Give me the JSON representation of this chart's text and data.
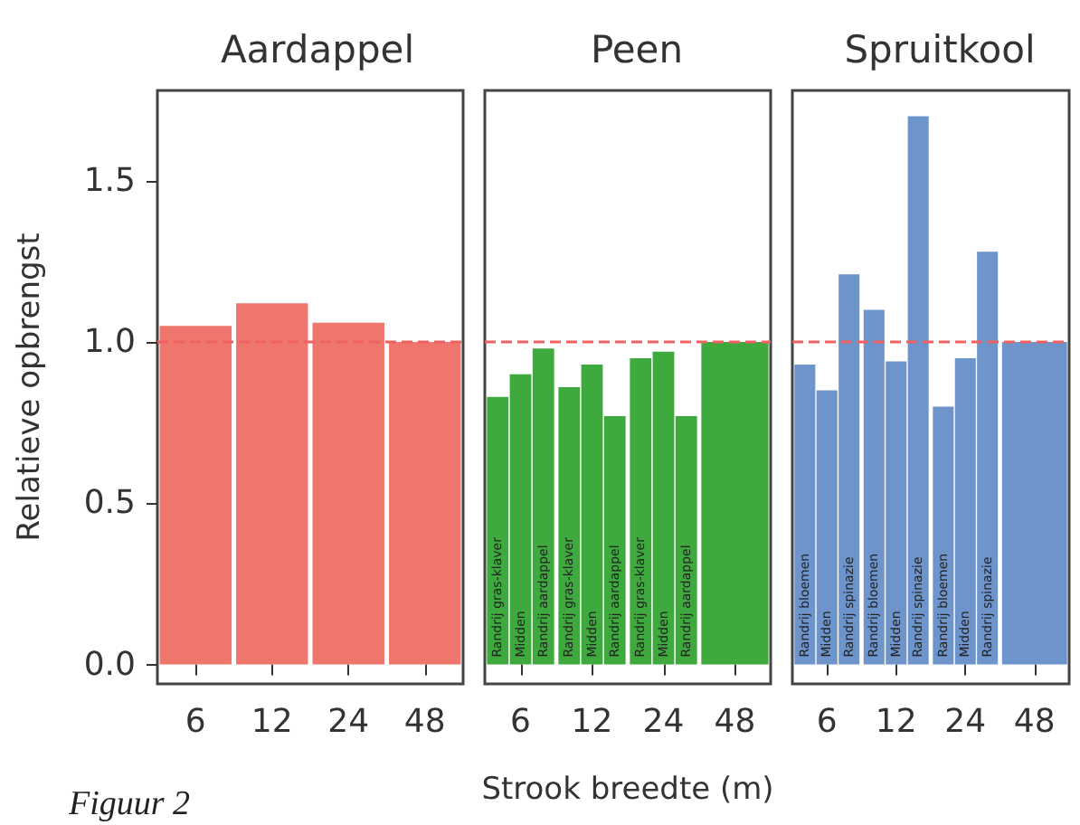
{
  "chart_data": [
    {
      "type": "bar",
      "title": "Aardappel",
      "ylabel": "Relatieve opbrengst",
      "categories": [
        "6",
        "12",
        "24",
        "48"
      ],
      "color": "#ef766c",
      "values": [
        1.05,
        1.12,
        1.06,
        1.0
      ],
      "ylim": [
        -0.06,
        1.78
      ],
      "yticks": [
        {
          "value": 0,
          "label": "0.0"
        },
        {
          "value": 0.5,
          "label": "0.5"
        },
        {
          "value": 1,
          "label": "1.0"
        },
        {
          "value": 1.5,
          "label": "1.5"
        }
      ],
      "grid": false,
      "ref_lines": [
        {
          "axis": "y",
          "value": 1.0,
          "color": "#f06060",
          "line_style": "dashed"
        }
      ],
      "annotations": [
        "Figuur 2"
      ]
    },
    {
      "type": "bar",
      "title": "Peen",
      "xlabel": "Strook breedte (m)",
      "categories": [
        "6",
        "12",
        "24",
        "48"
      ],
      "series": [
        {
          "name": "Randrij gras-klaver",
          "color": "#3eaa3e",
          "values": [
            0.83,
            0.86,
            0.95,
            null
          ]
        },
        {
          "name": "Midden",
          "color": "#3eaa3e",
          "values": [
            0.9,
            0.93,
            0.97,
            null
          ]
        },
        {
          "name": "Randrij aardappel",
          "color": "#3eaa3e",
          "values": [
            0.98,
            0.77,
            0.77,
            null
          ]
        },
        {
          "color": "#3eaa3e",
          "values": [
            null,
            null,
            null,
            1.0
          ]
        }
      ],
      "ylim": [
        -0.06,
        1.78
      ],
      "tick_labels": "x",
      "grid": false,
      "ref_lines": [
        {
          "axis": "y",
          "value": 1.0,
          "color": "#f06060",
          "line_style": "dashed"
        }
      ]
    },
    {
      "type": "bar",
      "title": "Spruitkool",
      "categories": [
        "6",
        "12",
        "24",
        "48"
      ],
      "series": [
        {
          "name": "Randrij bloemen",
          "color": "#6e94cc",
          "values": [
            0.93,
            1.1,
            0.8,
            null
          ]
        },
        {
          "name": "Midden",
          "color": "#6e94cc",
          "values": [
            0.85,
            0.94,
            0.95,
            null
          ]
        },
        {
          "name": "Randrij spinazie",
          "color": "#6e94cc",
          "values": [
            1.21,
            1.7,
            1.28,
            null
          ]
        },
        {
          "color": "#6e94cc",
          "values": [
            null,
            null,
            null,
            1.0
          ]
        }
      ],
      "ylim": [
        -0.06,
        1.78
      ],
      "tick_labels": "x",
      "grid": false,
      "ref_lines": [
        {
          "axis": "y",
          "value": 1.0,
          "color": "#f06060",
          "line_style": "dashed"
        }
      ]
    }
  ]
}
